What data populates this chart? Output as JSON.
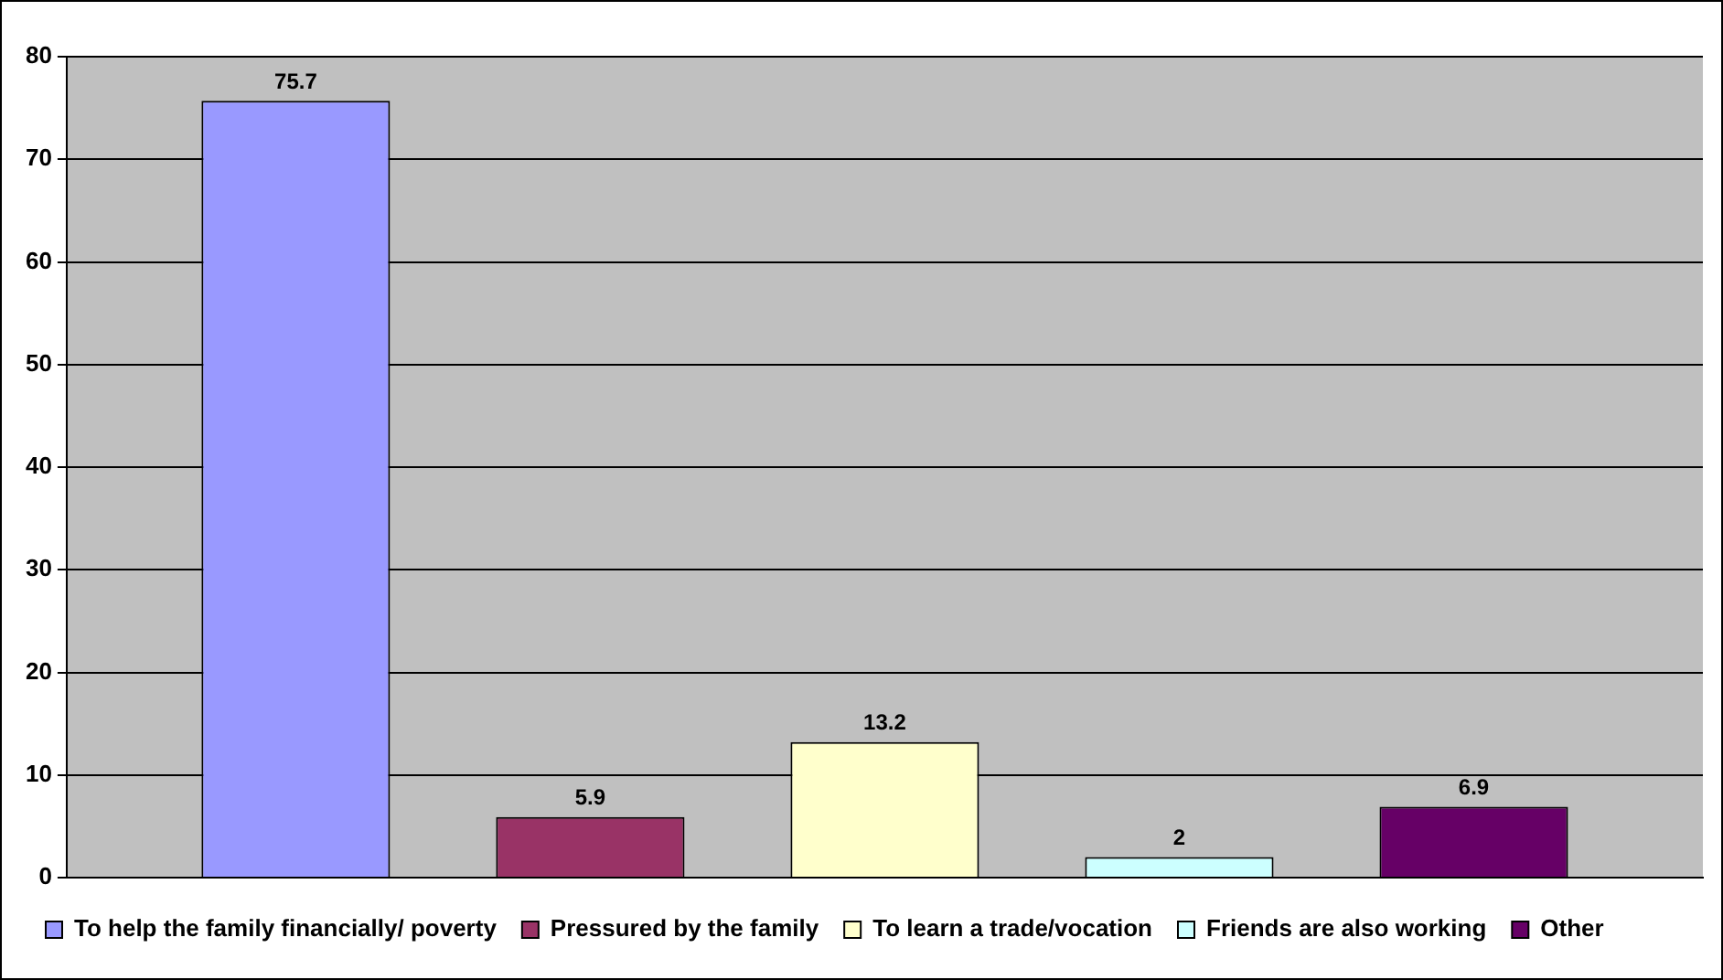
{
  "chart_data": {
    "type": "bar",
    "categories": [
      null
    ],
    "series": [
      {
        "name": "To help the family financially/ poverty",
        "color": "#9999ff",
        "values": [
          75.7
        ]
      },
      {
        "name": "Pressured by the family",
        "color": "#993366",
        "values": [
          5.9
        ]
      },
      {
        "name": "To learn a trade/vocation",
        "color": "#ffffcc",
        "values": [
          13.2
        ]
      },
      {
        "name": "Friends are also working",
        "color": "#ccffff",
        "values": [
          2
        ]
      },
      {
        "name": "Other",
        "color": "#660066",
        "values": [
          6.9
        ]
      }
    ],
    "ylim": [
      0,
      80
    ],
    "yticks": [
      0,
      10,
      20,
      30,
      40,
      50,
      60,
      70,
      80
    ],
    "grid": "y",
    "legend": "bottom",
    "data_labels": true
  }
}
